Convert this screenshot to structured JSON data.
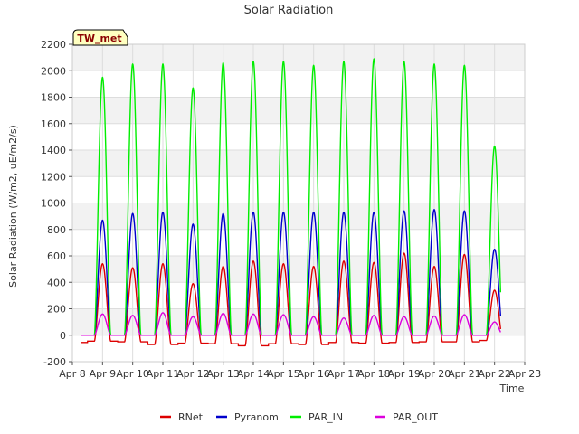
{
  "chart_data": {
    "type": "line",
    "title": "Solar Radiation",
    "xlabel": "Time",
    "ylabel": "Solar Radiation (W/m2, uE/m2/s)",
    "badge": "TW_met",
    "xlim": [
      8,
      23
    ],
    "ylim": [
      -200,
      2200
    ],
    "x_ticks": [
      {
        "value": 8,
        "label": "Apr 8"
      },
      {
        "value": 9,
        "label": "Apr 9"
      },
      {
        "value": 10,
        "label": "Apr 10"
      },
      {
        "value": 11,
        "label": "Apr 11"
      },
      {
        "value": 12,
        "label": "Apr 12"
      },
      {
        "value": 13,
        "label": "Apr 13"
      },
      {
        "value": 14,
        "label": "Apr 14"
      },
      {
        "value": 15,
        "label": "Apr 15"
      },
      {
        "value": 16,
        "label": "Apr 16"
      },
      {
        "value": 17,
        "label": "Apr 17"
      },
      {
        "value": 18,
        "label": "Apr 18"
      },
      {
        "value": 19,
        "label": "Apr 19"
      },
      {
        "value": 20,
        "label": "Apr 20"
      },
      {
        "value": 21,
        "label": "Apr 21"
      },
      {
        "value": 22,
        "label": "Apr 22"
      },
      {
        "value": 23,
        "label": "Apr 23"
      }
    ],
    "y_ticks": [
      -200,
      0,
      200,
      400,
      600,
      800,
      1000,
      1200,
      1400,
      1600,
      1800,
      2000,
      2200
    ],
    "grid": true,
    "legend_position": "bottom",
    "x_range_of_data": [
      8.3,
      22.2
    ],
    "days": [
      9,
      10,
      11,
      12,
      13,
      14,
      15,
      16,
      17,
      18,
      19,
      20,
      21,
      22
    ],
    "series": [
      {
        "name": "RNet",
        "color": "#dd0000",
        "night": -55,
        "peaks": [
          540,
          510,
          540,
          390,
          520,
          560,
          540,
          520,
          560,
          550,
          620,
          520,
          610,
          340
        ],
        "night_by_day": [
          -45,
          -50,
          -70,
          -60,
          -65,
          -80,
          -65,
          -70,
          -55,
          -60,
          -55,
          -50,
          -50,
          -40
        ]
      },
      {
        "name": "Pyranom",
        "color": "#0000cc",
        "night": 0,
        "peaks": [
          870,
          920,
          930,
          840,
          920,
          930,
          930,
          930,
          930,
          930,
          940,
          950,
          940,
          650
        ]
      },
      {
        "name": "PAR_IN",
        "color": "#00ee00",
        "night": 0,
        "peaks": [
          1950,
          2050,
          2050,
          1870,
          2060,
          2070,
          2070,
          2040,
          2070,
          2090,
          2070,
          2050,
          2040,
          1430
        ]
      },
      {
        "name": "PAR_OUT",
        "color": "#dd00dd",
        "night": 0,
        "peaks": [
          160,
          150,
          170,
          140,
          165,
          160,
          155,
          140,
          130,
          150,
          140,
          145,
          155,
          100
        ]
      }
    ]
  }
}
